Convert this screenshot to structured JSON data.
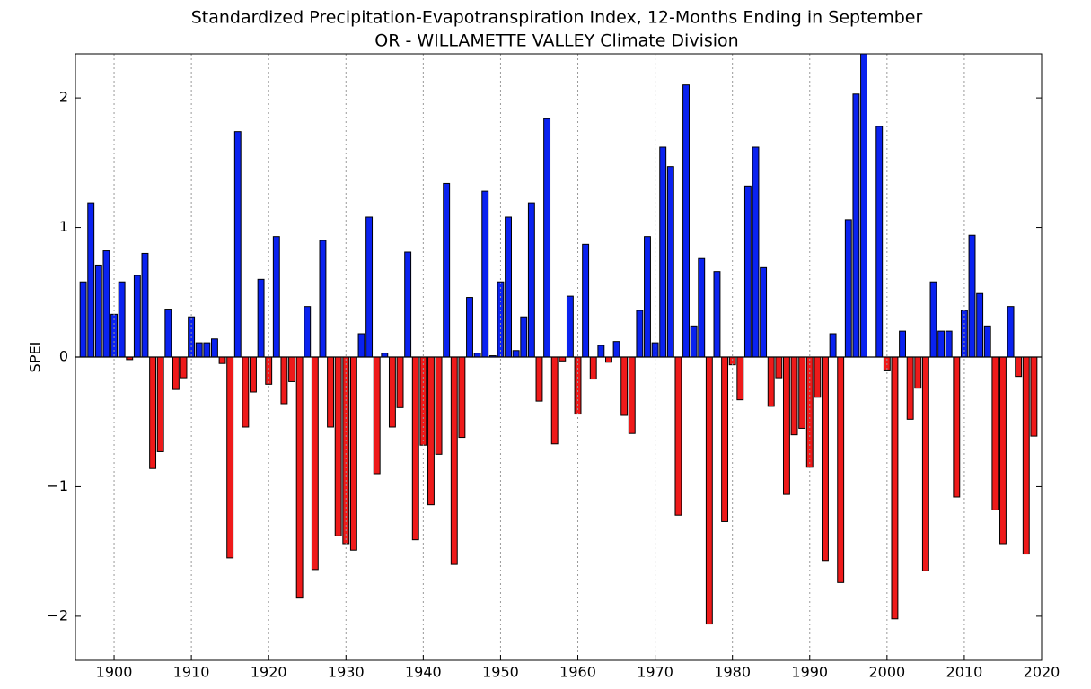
{
  "chart_data": {
    "type": "bar",
    "title": "Standardized Precipitation-Evapotranspiration Index, 12-Months Ending in September",
    "subtitle": "OR - WILLAMETTE VALLEY Climate Division",
    "y_label": "SPEI",
    "x": [
      1896,
      1897,
      1898,
      1899,
      1900,
      1901,
      1902,
      1903,
      1904,
      1905,
      1906,
      1907,
      1908,
      1909,
      1910,
      1911,
      1912,
      1913,
      1914,
      1915,
      1916,
      1917,
      1918,
      1919,
      1920,
      1921,
      1922,
      1923,
      1924,
      1925,
      1926,
      1927,
      1928,
      1929,
      1930,
      1931,
      1932,
      1933,
      1934,
      1935,
      1936,
      1937,
      1938,
      1939,
      1940,
      1941,
      1942,
      1943,
      1944,
      1945,
      1946,
      1947,
      1948,
      1949,
      1950,
      1951,
      1952,
      1953,
      1954,
      1955,
      1956,
      1957,
      1958,
      1959,
      1960,
      1961,
      1962,
      1963,
      1964,
      1965,
      1966,
      1967,
      1968,
      1969,
      1970,
      1971,
      1972,
      1973,
      1974,
      1975,
      1976,
      1977,
      1978,
      1979,
      1980,
      1981,
      1982,
      1983,
      1984,
      1985,
      1986,
      1987,
      1988,
      1989,
      1990,
      1991,
      1992,
      1993,
      1994,
      1995,
      1996,
      1997,
      1998,
      1999,
      2000,
      2001,
      2002,
      2003,
      2004,
      2005,
      2006,
      2007,
      2008,
      2009,
      2010,
      2011,
      2012,
      2013,
      2014,
      2015,
      2016,
      2017,
      2018,
      2019
    ],
    "values": [
      0.58,
      1.19,
      0.71,
      0.82,
      0.33,
      0.58,
      -0.02,
      0.63,
      0.8,
      -0.86,
      -0.73,
      0.37,
      -0.25,
      -0.16,
      0.31,
      0.11,
      0.11,
      0.14,
      -0.05,
      -1.55,
      1.74,
      -0.54,
      -0.27,
      0.6,
      -0.21,
      0.93,
      -0.36,
      -0.19,
      -1.86,
      0.39,
      -1.64,
      0.9,
      -0.54,
      -1.38,
      -1.44,
      -1.49,
      0.18,
      1.08,
      -0.9,
      0.03,
      -0.54,
      -0.39,
      0.81,
      -1.41,
      -0.68,
      -1.14,
      -0.75,
      1.34,
      -1.6,
      -0.62,
      0.46,
      0.03,
      1.28,
      0.01,
      0.58,
      1.08,
      0.05,
      0.31,
      1.19,
      -0.34,
      1.84,
      -0.67,
      -0.03,
      0.47,
      -0.44,
      0.87,
      -0.17,
      0.09,
      -0.04,
      0.12,
      -0.45,
      -0.59,
      0.36,
      0.93,
      0.11,
      1.62,
      1.47,
      -1.22,
      2.1,
      0.24,
      0.76,
      -2.06,
      0.66,
      -1.27,
      -0.06,
      -0.33,
      1.32,
      1.62,
      0.69,
      -0.38,
      -0.16,
      -1.06,
      -0.6,
      -0.55,
      -0.85,
      -0.31,
      -1.57,
      0.18,
      -1.74,
      1.06,
      2.03,
      2.4,
      0.0,
      1.78,
      -0.1,
      -2.02,
      0.2,
      -0.48,
      -0.24,
      -1.65,
      0.58,
      0.2,
      0.2,
      -1.08,
      0.36,
      0.94,
      0.49,
      0.24,
      -1.18,
      -1.44,
      0.39,
      -0.15,
      -1.52,
      -0.61
    ],
    "positive_color": "#0a22f0",
    "negative_color": "#ee1a1a",
    "xlim": [
      1895,
      2020
    ],
    "ylim": [
      -2.34,
      2.34
    ],
    "xticks": [
      1900,
      1910,
      1920,
      1930,
      1940,
      1950,
      1960,
      1970,
      1980,
      1990,
      2000,
      2010,
      2020
    ],
    "yticks": [
      {
        "value": -2,
        "label": "−2"
      },
      {
        "value": -1,
        "label": "−1"
      },
      0,
      1,
      2
    ],
    "grid": "x"
  }
}
